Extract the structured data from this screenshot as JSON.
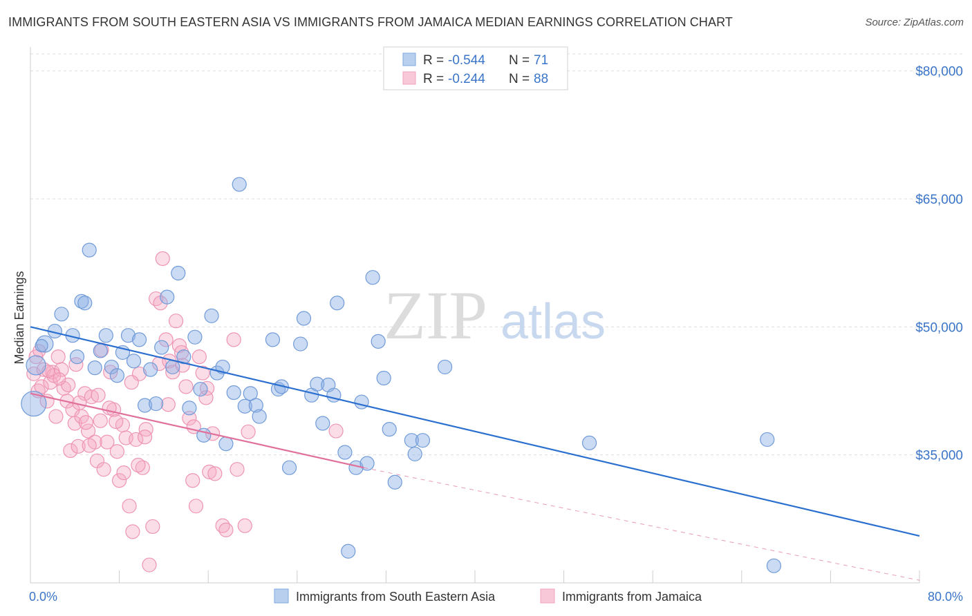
{
  "title": "IMMIGRANTS FROM SOUTH EASTERN ASIA VS IMMIGRANTS FROM JAMAICA MEDIAN EARNINGS CORRELATION CHART",
  "source": "Source: ZipAtlas.com",
  "watermark": {
    "zip": "ZIP",
    "atlas": "atlas"
  },
  "colors": {
    "blue": "#7fa8e0",
    "blue_line": "#2a6fd0",
    "pink": "#f2a3bd",
    "pink_line": "#e0709a",
    "axis_text": "#3a74c8"
  },
  "legend": {
    "series1": {
      "r_label": "R = ",
      "r_value": "-0.544",
      "n_label": "N = ",
      "n_value": "71"
    },
    "series2": {
      "r_label": "R = ",
      "r_value": "-0.244",
      "n_label": "N = ",
      "n_value": "88"
    }
  },
  "chart_data": {
    "type": "scatter",
    "title": "IMMIGRANTS FROM SOUTH EASTERN ASIA VS IMMIGRANTS FROM JAMAICA MEDIAN EARNINGS CORRELATION CHART",
    "xlabel": "",
    "ylabel": "Median Earnings",
    "xlim": [
      0,
      80
    ],
    "ylim": [
      20000,
      82000
    ],
    "x_tick_labels": [
      "0.0%",
      "80.0%"
    ],
    "y_ticks": [
      35000,
      50000,
      65000,
      80000
    ],
    "y_tick_labels": [
      "$35,000",
      "$50,000",
      "$65,000",
      "$80,000"
    ],
    "grid": true,
    "series": [
      {
        "name": "Immigrants from South Eastern Asia",
        "color": "#7fa8e0",
        "trend": {
          "x0": 0,
          "y0": 50000,
          "x1": 80,
          "y1": 25500
        },
        "points": [
          [
            0.3,
            41000,
            18
          ],
          [
            0.5,
            45500,
            14
          ],
          [
            1.3,
            48000,
            12
          ],
          [
            2.2,
            49500,
            10
          ],
          [
            2.8,
            51500,
            10
          ],
          [
            3.8,
            49000,
            10
          ],
          [
            4.2,
            46500,
            10
          ],
          [
            4.6,
            53000,
            10
          ],
          [
            4.9,
            52800,
            10
          ],
          [
            5.3,
            59000,
            10
          ],
          [
            5.8,
            45200,
            10
          ],
          [
            6.3,
            47200,
            10
          ],
          [
            6.8,
            49000,
            10
          ],
          [
            7.3,
            45300,
            10
          ],
          [
            7.8,
            44300,
            10
          ],
          [
            8.3,
            47000,
            10
          ],
          [
            8.8,
            49000,
            10
          ],
          [
            9.3,
            46000,
            10
          ],
          [
            9.8,
            48500,
            10
          ],
          [
            10.3,
            40800,
            10
          ],
          [
            10.8,
            45000,
            10
          ],
          [
            11.3,
            41000,
            10
          ],
          [
            11.8,
            47600,
            10
          ],
          [
            12.3,
            53500,
            10
          ],
          [
            12.8,
            45300,
            10
          ],
          [
            13.3,
            56300,
            10
          ],
          [
            13.8,
            46500,
            10
          ],
          [
            14.3,
            40500,
            10
          ],
          [
            14.8,
            48800,
            10
          ],
          [
            15.3,
            42700,
            10
          ],
          [
            15.6,
            37300,
            10
          ],
          [
            16.3,
            51300,
            10
          ],
          [
            16.8,
            44600,
            10
          ],
          [
            17.3,
            45300,
            10
          ],
          [
            17.6,
            36300,
            10
          ],
          [
            18.3,
            42300,
            10
          ],
          [
            18.8,
            66700,
            10
          ],
          [
            19.3,
            40700,
            10
          ],
          [
            19.8,
            42200,
            10
          ],
          [
            20.3,
            40800,
            10
          ],
          [
            20.6,
            39500,
            10
          ],
          [
            21.8,
            48500,
            10
          ],
          [
            22.3,
            42700,
            10
          ],
          [
            22.6,
            43000,
            10
          ],
          [
            23.3,
            33500,
            10
          ],
          [
            24.3,
            48000,
            10
          ],
          [
            24.6,
            51000,
            10
          ],
          [
            25.3,
            42000,
            10
          ],
          [
            25.8,
            43300,
            10
          ],
          [
            26.3,
            38700,
            10
          ],
          [
            26.8,
            43200,
            10
          ],
          [
            27.3,
            42000,
            10
          ],
          [
            27.6,
            52800,
            10
          ],
          [
            28.3,
            35300,
            10
          ],
          [
            28.6,
            23700,
            10
          ],
          [
            29.3,
            33500,
            10
          ],
          [
            29.8,
            41200,
            10
          ],
          [
            30.3,
            34000,
            10
          ],
          [
            30.8,
            55800,
            10
          ],
          [
            31.3,
            48300,
            10
          ],
          [
            31.8,
            44000,
            10
          ],
          [
            32.3,
            38000,
            10
          ],
          [
            32.8,
            31800,
            10
          ],
          [
            34.3,
            36700,
            10
          ],
          [
            34.6,
            35100,
            10
          ],
          [
            35.3,
            36700,
            10
          ],
          [
            37.3,
            45300,
            10
          ],
          [
            50.3,
            36400,
            10
          ],
          [
            66.3,
            36800,
            10
          ],
          [
            66.9,
            22000,
            10
          ],
          [
            1.0,
            47800,
            9
          ]
        ]
      },
      {
        "name": "Immigrants from Jamaica",
        "color": "#f2a3bd",
        "trend": {
          "x0": 0,
          "y0": 42200,
          "x1": 30,
          "y1": 33500
        },
        "trend_dashed": {
          "x0": 30,
          "y0": 33500,
          "x1": 80,
          "y1": 20300
        },
        "points": [
          [
            0.3,
            44500,
            10
          ],
          [
            0.5,
            46500,
            10
          ],
          [
            0.7,
            42500,
            10
          ],
          [
            1.0,
            43000,
            10
          ],
          [
            1.2,
            45000,
            10
          ],
          [
            1.5,
            41300,
            10
          ],
          [
            1.8,
            43500,
            10
          ],
          [
            2.0,
            44700,
            10
          ],
          [
            2.3,
            39500,
            10
          ],
          [
            2.5,
            46500,
            10
          ],
          [
            2.8,
            45000,
            10
          ],
          [
            3.0,
            42800,
            10
          ],
          [
            3.3,
            41300,
            10
          ],
          [
            3.6,
            35500,
            10
          ],
          [
            3.8,
            40300,
            10
          ],
          [
            4.0,
            38700,
            10
          ],
          [
            4.3,
            36000,
            10
          ],
          [
            4.6,
            39500,
            10
          ],
          [
            4.9,
            42200,
            10
          ],
          [
            5.2,
            37800,
            10
          ],
          [
            5.5,
            41800,
            10
          ],
          [
            5.8,
            36500,
            10
          ],
          [
            6.0,
            34300,
            10
          ],
          [
            6.3,
            39000,
            10
          ],
          [
            6.6,
            33300,
            10
          ],
          [
            6.9,
            36500,
            10
          ],
          [
            7.2,
            44700,
            10
          ],
          [
            7.5,
            40300,
            10
          ],
          [
            7.8,
            35400,
            10
          ],
          [
            8.0,
            32000,
            10
          ],
          [
            8.3,
            38500,
            10
          ],
          [
            8.6,
            37000,
            10
          ],
          [
            8.9,
            29000,
            10
          ],
          [
            9.2,
            26000,
            10
          ],
          [
            9.5,
            36800,
            10
          ],
          [
            9.8,
            44500,
            10
          ],
          [
            10.1,
            33500,
            10
          ],
          [
            10.4,
            38000,
            10
          ],
          [
            10.7,
            22100,
            10
          ],
          [
            11.0,
            26600,
            10
          ],
          [
            11.3,
            53300,
            10
          ],
          [
            11.6,
            45700,
            10
          ],
          [
            11.9,
            58000,
            10
          ],
          [
            12.2,
            48500,
            10
          ],
          [
            12.5,
            46000,
            10
          ],
          [
            12.8,
            44700,
            10
          ],
          [
            13.1,
            50700,
            10
          ],
          [
            13.4,
            47800,
            10
          ],
          [
            13.7,
            45500,
            10
          ],
          [
            14.0,
            43000,
            10
          ],
          [
            14.3,
            39300,
            10
          ],
          [
            14.6,
            32000,
            10
          ],
          [
            14.9,
            29000,
            10
          ],
          [
            15.2,
            46500,
            10
          ],
          [
            15.5,
            44600,
            10
          ],
          [
            15.8,
            41700,
            10
          ],
          [
            16.1,
            33000,
            10
          ],
          [
            16.4,
            37500,
            10
          ],
          [
            17.3,
            26700,
            10
          ],
          [
            17.6,
            26200,
            10
          ],
          [
            18.3,
            48500,
            10
          ],
          [
            18.6,
            33300,
            10
          ],
          [
            19.3,
            26700,
            10
          ],
          [
            19.6,
            37700,
            10
          ],
          [
            2.1,
            44300,
            10
          ],
          [
            3.4,
            43200,
            10
          ],
          [
            4.1,
            45600,
            10
          ],
          [
            4.4,
            41100,
            10
          ],
          [
            5.0,
            38800,
            10
          ],
          [
            5.3,
            36100,
            10
          ],
          [
            6.1,
            42000,
            10
          ],
          [
            6.4,
            47300,
            10
          ],
          [
            7.1,
            40500,
            10
          ],
          [
            7.7,
            38900,
            10
          ],
          [
            8.4,
            32900,
            10
          ],
          [
            9.1,
            43500,
            10
          ],
          [
            9.7,
            33800,
            10
          ],
          [
            10.3,
            37100,
            10
          ],
          [
            11.7,
            52800,
            10
          ],
          [
            12.4,
            40900,
            10
          ],
          [
            13.6,
            47000,
            10
          ],
          [
            14.7,
            38300,
            10
          ],
          [
            15.9,
            42800,
            10
          ],
          [
            16.6,
            32800,
            10
          ],
          [
            0.8,
            47200,
            9
          ],
          [
            1.6,
            44800,
            9
          ],
          [
            2.6,
            43900,
            9
          ],
          [
            27.5,
            37800,
            10
          ]
        ]
      }
    ]
  },
  "bottom_legend": {
    "series1": "Immigrants from South Eastern Asia",
    "series2": "Immigrants from Jamaica"
  }
}
